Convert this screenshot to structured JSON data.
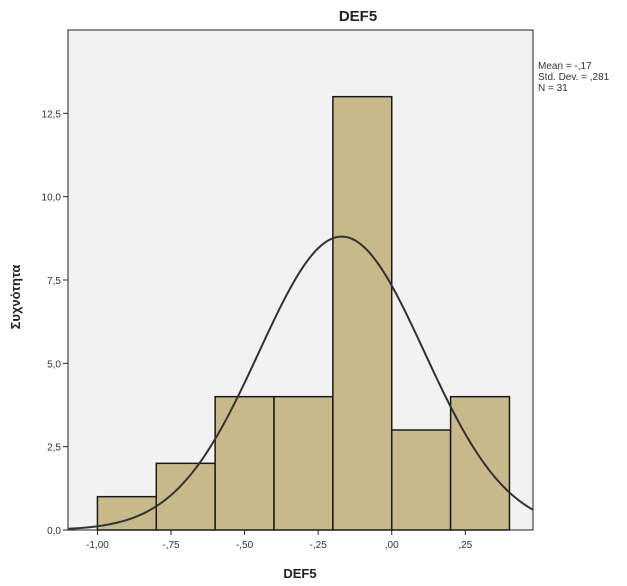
{
  "chart_data": {
    "type": "histogram",
    "title": "DEF5",
    "xlabel": "DEF5",
    "ylabel": "Συχνότητα",
    "bins": [
      {
        "from": -1.0,
        "to": -0.8,
        "count": 1
      },
      {
        "from": -0.8,
        "to": -0.6,
        "count": 2
      },
      {
        "from": -0.6,
        "to": -0.4,
        "count": 4
      },
      {
        "from": -0.4,
        "to": -0.2,
        "count": 4
      },
      {
        "from": -0.2,
        "to": 0.0,
        "count": 13
      },
      {
        "from": 0.0,
        "to": 0.2,
        "count": 3
      },
      {
        "from": 0.2,
        "to": 0.4,
        "count": 4
      }
    ],
    "xlim": [
      -1.1,
      0.48
    ],
    "ylim": [
      0,
      15
    ],
    "x_ticks": [
      {
        "value": -1.0,
        "label": "-1,00"
      },
      {
        "value": -0.75,
        "label": "-,75"
      },
      {
        "value": -0.5,
        "label": "-,50"
      },
      {
        "value": -0.25,
        "label": "-,25"
      },
      {
        "value": 0.0,
        "label": ",00"
      },
      {
        "value": 0.25,
        "label": ",25"
      }
    ],
    "y_ticks": [
      {
        "value": 0,
        "label": "0,0"
      },
      {
        "value": 2.5,
        "label": "2,5"
      },
      {
        "value": 5.0,
        "label": "5,0"
      },
      {
        "value": 7.5,
        "label": "7,5"
      },
      {
        "value": 10.0,
        "label": "10,0"
      },
      {
        "value": 12.5,
        "label": "12,5"
      }
    ],
    "normal_curve": {
      "mean": -0.17,
      "std": 0.281,
      "n": 31,
      "bin_width": 0.2
    },
    "stats": [
      "Mean = -,17",
      "Std. Dev. = ,281",
      "N = 31"
    ],
    "colors": {
      "bar_fill": "#c7b98a",
      "bar_stroke": "#1a1a1a",
      "plot_bg": "#f2f2f2",
      "curve": "#333333"
    },
    "grid": false,
    "legend": "none"
  }
}
